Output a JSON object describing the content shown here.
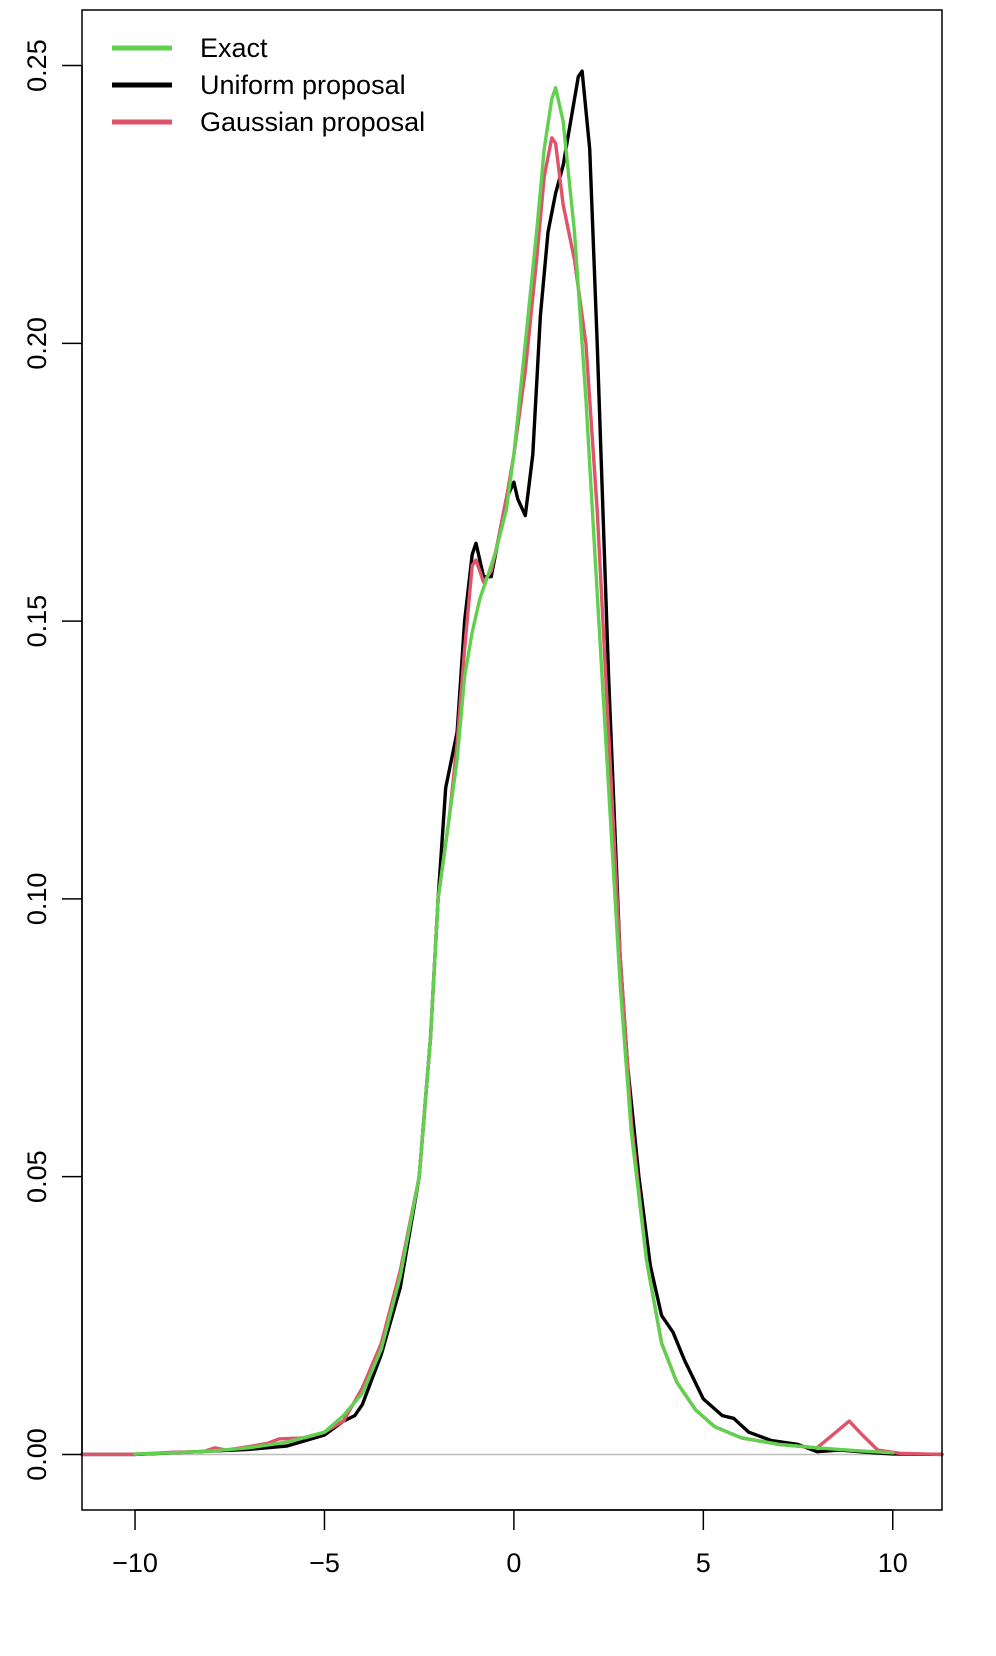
{
  "chart_data": {
    "type": "line",
    "title": "",
    "xlabel": "",
    "ylabel": "",
    "xlim": [
      -11.4,
      11.3
    ],
    "ylim": [
      -0.01,
      0.26
    ],
    "x_ticks": [
      -10,
      -5,
      0,
      5,
      10
    ],
    "x_tick_labels": [
      "−10",
      "−5",
      "0",
      "5",
      "10"
    ],
    "y_ticks": [
      0.0,
      0.05,
      0.1,
      0.15,
      0.2,
      0.25
    ],
    "y_tick_labels": [
      "0.00",
      "0.05",
      "0.10",
      "0.15",
      "0.20",
      "0.25"
    ],
    "zero_line": true,
    "grid": false,
    "legend_position": "top-left",
    "series": [
      {
        "name": "Uniform proposal",
        "color": "#000000",
        "points": [
          [
            -11.4,
            0.0
          ],
          [
            -10,
            0.0
          ],
          [
            -9,
            0.0003
          ],
          [
            -8,
            0.0006
          ],
          [
            -7,
            0.0009
          ],
          [
            -6,
            0.0015
          ],
          [
            -5,
            0.0035
          ],
          [
            -4.5,
            0.006
          ],
          [
            -4.2,
            0.007
          ],
          [
            -4.0,
            0.009
          ],
          [
            -3.5,
            0.018
          ],
          [
            -3.0,
            0.03
          ],
          [
            -2.5,
            0.05
          ],
          [
            -2.2,
            0.075
          ],
          [
            -2.0,
            0.1
          ],
          [
            -1.8,
            0.12
          ],
          [
            -1.5,
            0.13
          ],
          [
            -1.3,
            0.15
          ],
          [
            -1.1,
            0.162
          ],
          [
            -1.0,
            0.164
          ],
          [
            -0.8,
            0.158
          ],
          [
            -0.6,
            0.158
          ],
          [
            -0.4,
            0.165
          ],
          [
            -0.2,
            0.172
          ],
          [
            0.0,
            0.175
          ],
          [
            0.1,
            0.172
          ],
          [
            0.3,
            0.169
          ],
          [
            0.5,
            0.18
          ],
          [
            0.7,
            0.205
          ],
          [
            0.9,
            0.22
          ],
          [
            1.1,
            0.227
          ],
          [
            1.3,
            0.232
          ],
          [
            1.5,
            0.24
          ],
          [
            1.7,
            0.248
          ],
          [
            1.8,
            0.249
          ],
          [
            2.0,
            0.235
          ],
          [
            2.2,
            0.2
          ],
          [
            2.5,
            0.14
          ],
          [
            2.8,
            0.09
          ],
          [
            3.0,
            0.07
          ],
          [
            3.3,
            0.05
          ],
          [
            3.6,
            0.034
          ],
          [
            3.9,
            0.025
          ],
          [
            4.2,
            0.022
          ],
          [
            4.5,
            0.017
          ],
          [
            5.0,
            0.01
          ],
          [
            5.5,
            0.007
          ],
          [
            5.8,
            0.0065
          ],
          [
            6.2,
            0.004
          ],
          [
            6.8,
            0.0025
          ],
          [
            7.5,
            0.0018
          ],
          [
            8.0,
            0.0005
          ],
          [
            8.6,
            0.0008
          ],
          [
            9.5,
            0.0003
          ],
          [
            10.0,
            0.0001
          ],
          [
            11.3,
            0.0
          ]
        ]
      },
      {
        "name": "Gaussian proposal",
        "color": "#DF536B",
        "points": [
          [
            -11.4,
            0.0
          ],
          [
            -10,
            0.0
          ],
          [
            -9,
            0.0004
          ],
          [
            -8.2,
            0.0005
          ],
          [
            -7.9,
            0.0012
          ],
          [
            -7.6,
            0.0008
          ],
          [
            -7,
            0.0014
          ],
          [
            -6.5,
            0.002
          ],
          [
            -6.2,
            0.0028
          ],
          [
            -5.5,
            0.003
          ],
          [
            -5.0,
            0.004
          ],
          [
            -4.5,
            0.006
          ],
          [
            -4.0,
            0.012
          ],
          [
            -3.5,
            0.02
          ],
          [
            -3.0,
            0.033
          ],
          [
            -2.5,
            0.05
          ],
          [
            -2.2,
            0.075
          ],
          [
            -2.0,
            0.1
          ],
          [
            -1.7,
            0.115
          ],
          [
            -1.5,
            0.128
          ],
          [
            -1.3,
            0.145
          ],
          [
            -1.1,
            0.16
          ],
          [
            -1.0,
            0.161
          ],
          [
            -0.8,
            0.157
          ],
          [
            -0.6,
            0.159
          ],
          [
            -0.4,
            0.165
          ],
          [
            -0.2,
            0.172
          ],
          [
            0.0,
            0.18
          ],
          [
            0.3,
            0.195
          ],
          [
            0.6,
            0.215
          ],
          [
            0.8,
            0.23
          ],
          [
            1.0,
            0.237
          ],
          [
            1.1,
            0.236
          ],
          [
            1.3,
            0.225
          ],
          [
            1.6,
            0.215
          ],
          [
            1.9,
            0.2
          ],
          [
            2.2,
            0.17
          ],
          [
            2.5,
            0.13
          ],
          [
            2.8,
            0.09
          ],
          [
            3.1,
            0.06
          ],
          [
            3.5,
            0.035
          ],
          [
            3.9,
            0.02
          ],
          [
            4.3,
            0.013
          ],
          [
            4.8,
            0.008
          ],
          [
            5.3,
            0.005
          ],
          [
            6.0,
            0.003
          ],
          [
            7.0,
            0.0018
          ],
          [
            8.0,
            0.0012
          ],
          [
            8.5,
            0.004
          ],
          [
            8.85,
            0.006
          ],
          [
            9.2,
            0.0035
          ],
          [
            9.6,
            0.0008
          ],
          [
            10.2,
            0.0002
          ],
          [
            11.3,
            0.0
          ]
        ]
      },
      {
        "name": "Exact",
        "color": "#61D04F",
        "points": [
          [
            -10,
            0.0001
          ],
          [
            -9,
            0.0003
          ],
          [
            -8,
            0.0006
          ],
          [
            -7,
            0.0012
          ],
          [
            -6,
            0.0022
          ],
          [
            -5,
            0.004
          ],
          [
            -4.5,
            0.007
          ],
          [
            -4.0,
            0.011
          ],
          [
            -3.5,
            0.019
          ],
          [
            -3.0,
            0.032
          ],
          [
            -2.5,
            0.05
          ],
          [
            -2.2,
            0.075
          ],
          [
            -2.0,
            0.1
          ],
          [
            -1.7,
            0.115
          ],
          [
            -1.5,
            0.125
          ],
          [
            -1.3,
            0.14
          ],
          [
            -1.1,
            0.148
          ],
          [
            -0.9,
            0.154
          ],
          [
            -0.7,
            0.158
          ],
          [
            -0.5,
            0.162
          ],
          [
            -0.2,
            0.17
          ],
          [
            0.0,
            0.18
          ],
          [
            0.3,
            0.2
          ],
          [
            0.6,
            0.22
          ],
          [
            0.8,
            0.235
          ],
          [
            1.0,
            0.244
          ],
          [
            1.1,
            0.246
          ],
          [
            1.3,
            0.24
          ],
          [
            1.6,
            0.22
          ],
          [
            1.9,
            0.19
          ],
          [
            2.2,
            0.155
          ],
          [
            2.5,
            0.12
          ],
          [
            2.8,
            0.085
          ],
          [
            3.1,
            0.058
          ],
          [
            3.5,
            0.035
          ],
          [
            3.9,
            0.02
          ],
          [
            4.3,
            0.013
          ],
          [
            4.8,
            0.008
          ],
          [
            5.3,
            0.005
          ],
          [
            6.0,
            0.003
          ],
          [
            7.0,
            0.0018
          ],
          [
            8.0,
            0.0012
          ],
          [
            9.0,
            0.0007
          ],
          [
            10.0,
            0.0003
          ]
        ]
      }
    ],
    "legend": [
      {
        "label": "Exact",
        "color": "#61D04F"
      },
      {
        "label": "Uniform proposal",
        "color": "#000000"
      },
      {
        "label": "Gaussian proposal",
        "color": "#DF536B"
      }
    ]
  }
}
